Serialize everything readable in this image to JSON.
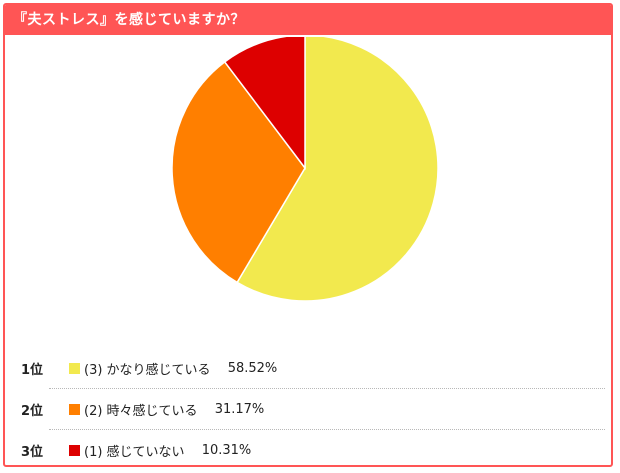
{
  "title": "『夫ストレス』を感じていますか？",
  "chart_data": {
    "type": "pie",
    "title": "『夫ストレス』を感じていますか？",
    "slices": [
      {
        "label": "(3) かなり感じている",
        "value": 58.52,
        "color": "#f2e94e"
      },
      {
        "label": "(2) 時々感じている",
        "value": 31.17,
        "color": "#ff7f00"
      },
      {
        "label": "(1) 感じていない",
        "value": 10.31,
        "color": "#dd0000"
      }
    ]
  },
  "ranking": [
    {
      "rank": "1位",
      "label": "(3) かなり感じている",
      "percent": "58.52%",
      "color": "#f2e94e"
    },
    {
      "rank": "2位",
      "label": "(2) 時々感じている",
      "percent": "31.17%",
      "color": "#ff7f00"
    },
    {
      "rank": "3位",
      "label": "(1) 感じていない",
      "percent": "10.31%",
      "color": "#dd0000"
    }
  ]
}
